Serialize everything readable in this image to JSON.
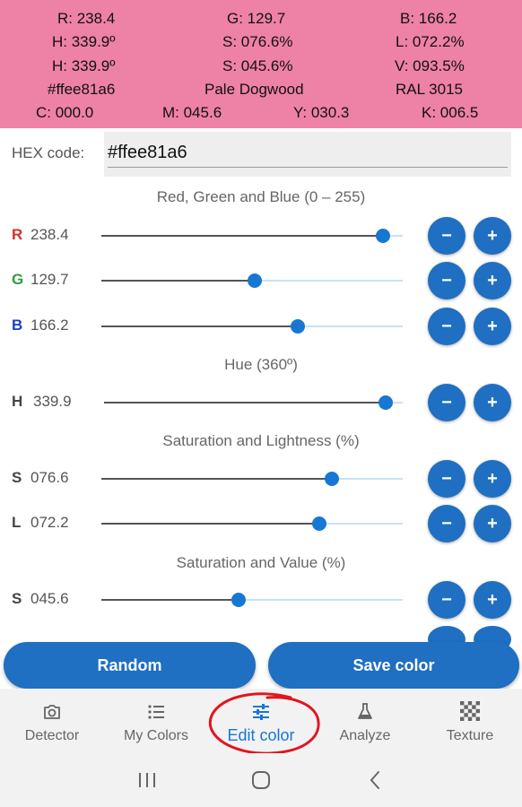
{
  "colors": {
    "current": "#ee81a6",
    "accent": "#1877d2",
    "button": "#1f6fc2",
    "red_label": "#d32f2f",
    "green_label": "#2e9d3a",
    "blue_label": "#1f3fbf",
    "annotation": "#e0161e"
  },
  "info": {
    "r": "R: 238.4",
    "g": "G: 129.7",
    "b": "B: 166.2",
    "h1": "H: 339.9º",
    "s1": "S: 076.6%",
    "l": "L: 072.2%",
    "h2": "H: 339.9º",
    "s2": "S: 045.6%",
    "v": "V: 093.5%",
    "hex": "#ffee81a6",
    "name": "Pale Dogwood",
    "ral": "RAL 3015",
    "c": "C: 000.0",
    "m": "M: 045.6",
    "y": "Y: 030.3",
    "k": "K: 006.5"
  },
  "hex": {
    "label": "HEX code:",
    "value": "#ffee81a6"
  },
  "sections": {
    "rgb": "Red, Green and Blue (0 – 255)",
    "hue": "Hue (360º)",
    "hsl": "Saturation and Lightness (%)",
    "hsv": "Saturation and Value (%)"
  },
  "sliders": {
    "red": {
      "channel": "R",
      "value": "238.4",
      "fraction": 0.935
    },
    "green": {
      "channel": "G",
      "value": "129.7",
      "fraction": 0.509
    },
    "blue": {
      "channel": "B",
      "value": "166.2",
      "fraction": 0.652
    },
    "hue": {
      "channel": "H",
      "value": "339.9",
      "fraction": 0.944
    },
    "saturation_l": {
      "channel": "S",
      "value": "076.6",
      "fraction": 0.766
    },
    "lightness": {
      "channel": "L",
      "value": "072.2",
      "fraction": 0.722
    },
    "saturation_v": {
      "channel": "S",
      "value": "045.6",
      "fraction": 0.456
    }
  },
  "buttons": {
    "minus": "−",
    "plus": "+",
    "random": "Random",
    "save": "Save color"
  },
  "nav": {
    "detector": {
      "label": "Detector",
      "icon": "camera-icon"
    },
    "my_colors": {
      "label": "My Colors",
      "icon": "list-icon"
    },
    "edit_color": {
      "label": "Edit color",
      "icon": "sliders-icon"
    },
    "analyze": {
      "label": "Analyze",
      "icon": "flask-icon"
    },
    "texture": {
      "label": "Texture",
      "icon": "checkerboard-icon"
    }
  }
}
